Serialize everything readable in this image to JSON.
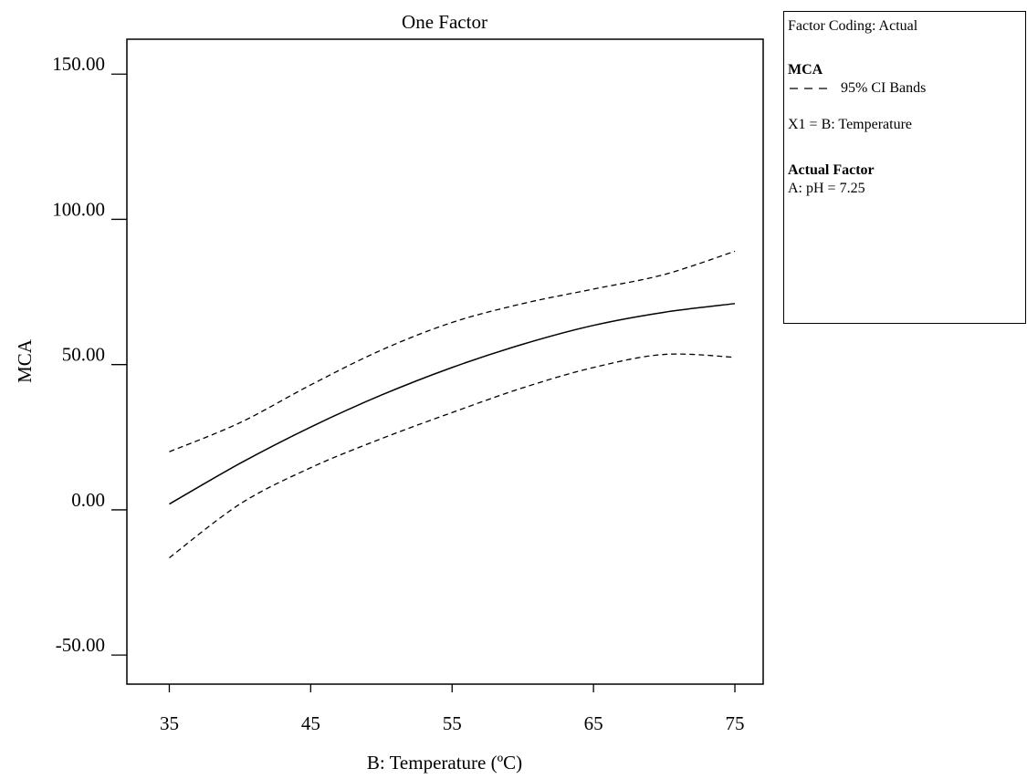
{
  "chart_data": {
    "type": "line",
    "title": "One Factor",
    "xlabel": "B: Temperature (ºC)",
    "ylabel": "MCA",
    "xlim": [
      32.0,
      77.0
    ],
    "ylim": [
      -60.0,
      162.0
    ],
    "xticks": [
      35,
      45,
      55,
      65,
      75
    ],
    "xtick_labels": [
      "35",
      "45",
      "55",
      "65",
      "75"
    ],
    "yticks": [
      -50,
      0,
      50,
      100,
      150
    ],
    "ytick_labels": [
      "-50.00",
      "0.00",
      "50.00",
      "100.00",
      "150.00"
    ],
    "grid": false,
    "x": [
      35,
      40,
      45,
      50,
      55,
      60,
      65,
      70,
      75
    ],
    "series": [
      {
        "name": "MCA",
        "style": "solid",
        "values": [
          2.0,
          16.0,
          28.5,
          39.5,
          49.0,
          57.0,
          63.5,
          68.0,
          71.0
        ]
      },
      {
        "name": "95% CI Bands",
        "style": "dashed",
        "role": "upper",
        "values": [
          20.0,
          30.0,
          43.0,
          55.0,
          64.5,
          71.0,
          76.0,
          81.0,
          89.0
        ]
      },
      {
        "name": "95% CI Bands",
        "style": "dashed",
        "role": "lower",
        "values": [
          -16.5,
          2.0,
          14.5,
          24.5,
          33.5,
          42.0,
          49.0,
          53.5,
          52.5
        ]
      }
    ]
  },
  "legend": {
    "coding": "Factor Coding: Actual",
    "response": "MCA",
    "ci_label": "95% CI Bands",
    "x1": "X1 = B: Temperature",
    "actual_factor_heading": "Actual Factor",
    "actual_factor_value": "A: pH = 7.25"
  }
}
